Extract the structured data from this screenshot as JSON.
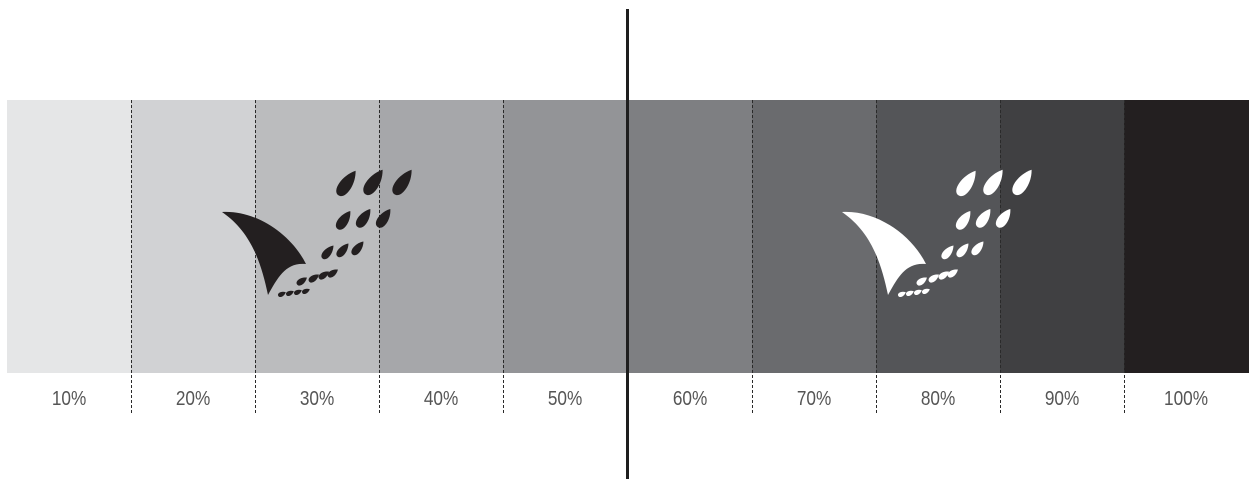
{
  "swatches": [
    {
      "label": "10%",
      "color": "#e5e6e7"
    },
    {
      "label": "20%",
      "color": "#d1d2d4"
    },
    {
      "label": "30%",
      "color": "#bbbcbe"
    },
    {
      "label": "40%",
      "color": "#a6a7aa"
    },
    {
      "label": "50%",
      "color": "#939497"
    },
    {
      "label": "60%",
      "color": "#7e7f82"
    },
    {
      "label": "70%",
      "color": "#6a6b6e"
    },
    {
      "label": "80%",
      "color": "#545558"
    },
    {
      "label": "90%",
      "color": "#404042"
    },
    {
      "label": "100%",
      "color": "#231f20"
    }
  ],
  "logos": [
    {
      "name": "logo-mark-dark",
      "fill": "#231f20"
    },
    {
      "name": "logo-mark-light",
      "fill": "#ffffff"
    }
  ],
  "divider_color": "#1e1e1e"
}
